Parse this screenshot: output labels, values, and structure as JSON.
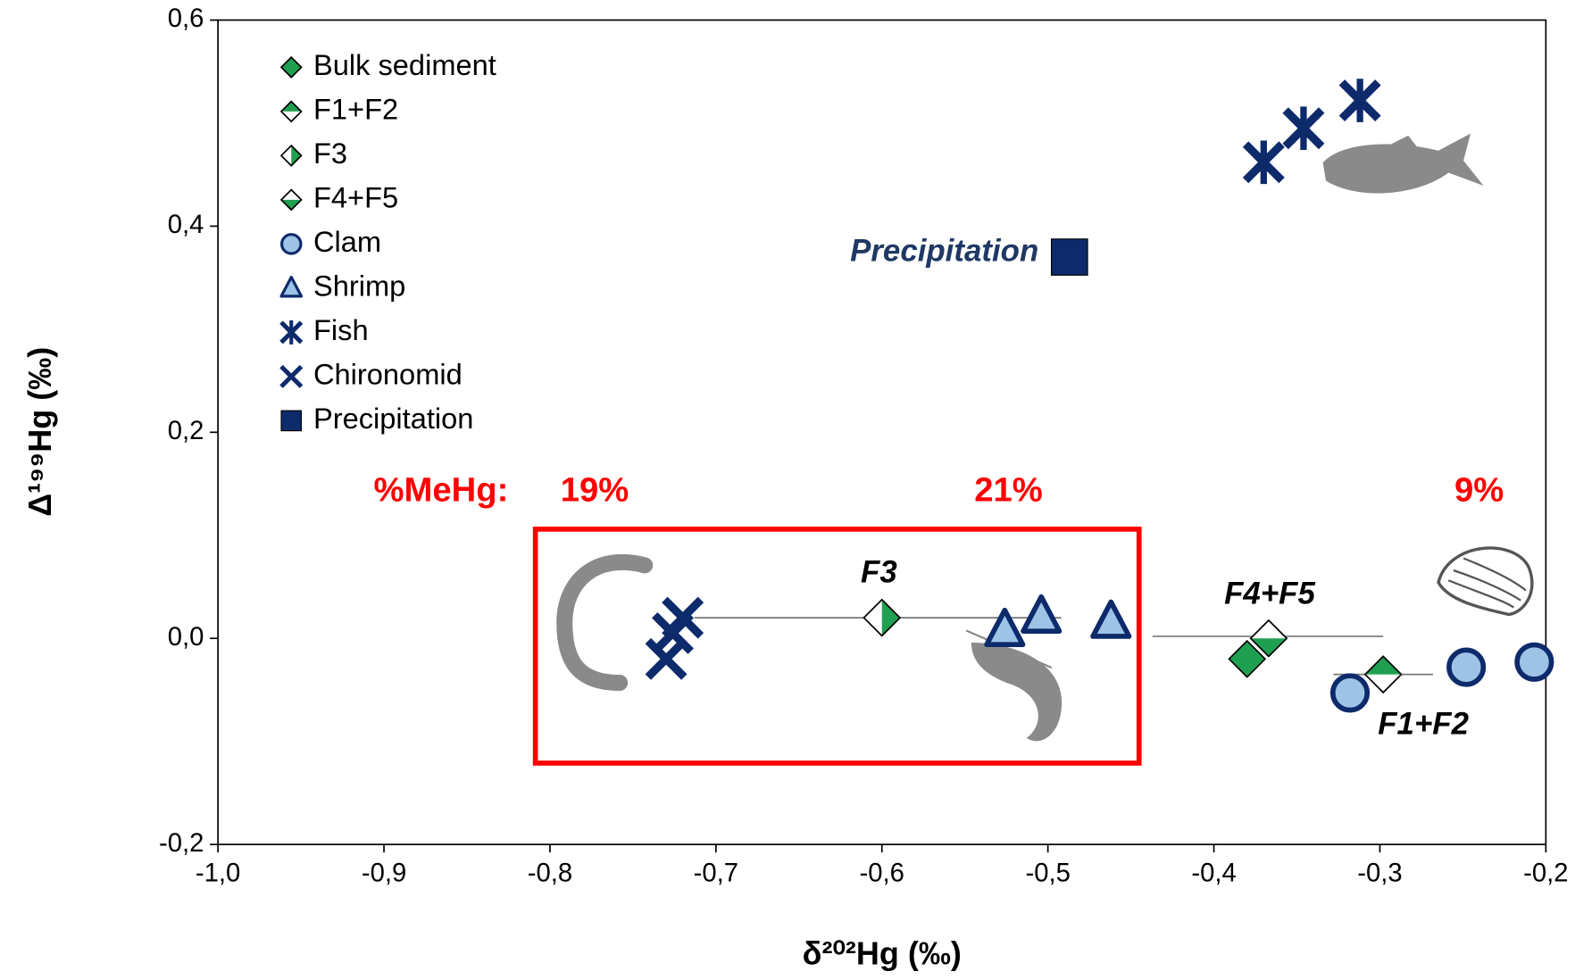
{
  "chart_data": {
    "type": "scatter",
    "x_label": "δ²⁰²Hg (‰)",
    "y_label": "Δ¹⁹⁹Hg (‰)",
    "xlim": [
      -1.0,
      -0.2
    ],
    "ylim": [
      -0.2,
      0.6
    ],
    "xticks": [
      {
        "value": -1.0,
        "label": "-1,0"
      },
      {
        "value": -0.9,
        "label": "-0,9"
      },
      {
        "value": -0.8,
        "label": "-0,8"
      },
      {
        "value": -0.7,
        "label": "-0,7"
      },
      {
        "value": -0.6,
        "label": "-0,6"
      },
      {
        "value": -0.5,
        "label": "-0,5"
      },
      {
        "value": -0.4,
        "label": "-0,4"
      },
      {
        "value": -0.3,
        "label": "-0,3"
      },
      {
        "value": -0.2,
        "label": "-0,2"
      }
    ],
    "yticks": [
      {
        "value": -0.2,
        "label": "-0,2"
      },
      {
        "value": 0.0,
        "label": "0,0"
      },
      {
        "value": 0.2,
        "label": "0,2"
      },
      {
        "value": 0.4,
        "label": "0,4"
      },
      {
        "value": 0.6,
        "label": "0,6"
      }
    ],
    "legend": "upper left",
    "series": [
      {
        "name": "Bulk sediment",
        "marker": "diamond-full",
        "color": "#1fa050",
        "x": [
          -0.38
        ],
        "values": [
          -0.02
        ]
      },
      {
        "name": "F1+F2",
        "marker": "diamond-top",
        "color": "#1fa050",
        "x": [
          -0.298
        ],
        "values": [
          -0.035
        ]
      },
      {
        "name": "F3",
        "marker": "diamond-right",
        "color": "#1fa050",
        "x": [
          -0.6
        ],
        "values": [
          0.02
        ]
      },
      {
        "name": "F4+F5",
        "marker": "diamond-bottom",
        "color": "#1fa050",
        "x": [
          -0.367
        ],
        "values": [
          0.0
        ]
      },
      {
        "name": "Clam",
        "marker": "circle",
        "color": "#9dc3e6",
        "x": [
          -0.318,
          -0.248,
          -0.207
        ],
        "values": [
          -0.053,
          -0.028,
          -0.023
        ]
      },
      {
        "name": "Shrimp",
        "marker": "triangle",
        "color": "#9dc3e6",
        "x": [
          -0.526,
          -0.504,
          -0.462
        ],
        "values": [
          0.008,
          0.021,
          0.016
        ]
      },
      {
        "name": "Fish",
        "marker": "star",
        "color": "#0d2a6b",
        "x": [
          -0.37,
          -0.346,
          -0.312
        ],
        "values": [
          0.462,
          0.495,
          0.522
        ]
      },
      {
        "name": "Chironomid",
        "marker": "cross",
        "color": "#0d2a6b",
        "x": [
          -0.72,
          -0.726,
          -0.73
        ],
        "values": [
          0.02,
          0.005,
          -0.02
        ]
      },
      {
        "name": "Precipitation",
        "marker": "square",
        "color": "#0d2a6b",
        "x": [
          -0.487
        ],
        "values": [
          0.37
        ]
      }
    ],
    "ranges": [
      {
        "y": 0.02,
        "x": [
          -0.713,
          -0.492
        ]
      },
      {
        "y": 0.002,
        "x": [
          -0.437,
          -0.298
        ]
      },
      {
        "y": -0.035,
        "x": [
          -0.328,
          -0.268
        ]
      }
    ],
    "annotations": [
      "Precipitation",
      "F3",
      "F4+F5",
      "F1+F2"
    ],
    "mehg_label": "%MeHg:",
    "mehg_values": [
      "19%",
      "21%",
      "9%"
    ]
  }
}
